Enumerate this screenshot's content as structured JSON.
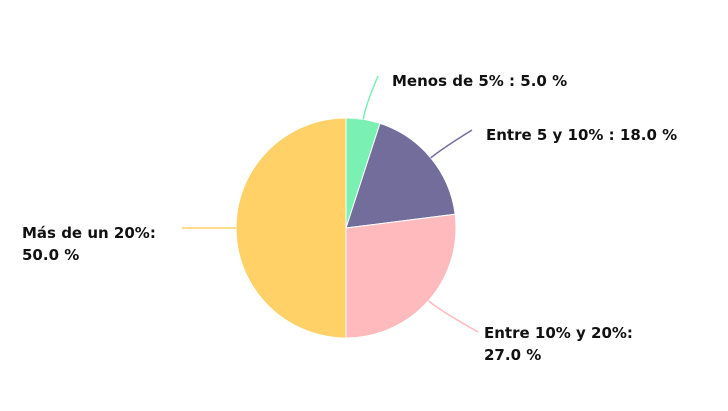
{
  "chart_data": {
    "type": "pie",
    "title": "",
    "slices": [
      {
        "label": "Menos de 5%",
        "value": 5.0,
        "display": [
          "Menos de 5% : 5.0 %"
        ],
        "color": "#7af0b2"
      },
      {
        "label": "Entre 5 y 10%",
        "value": 18.0,
        "display": [
          "Entre 5 y 10% : 18.0 %"
        ],
        "color": "#736d9b"
      },
      {
        "label": "Entre 10% y 20%",
        "value": 27.0,
        "display": [
          "Entre 10% y 20%:",
          "27.0 %"
        ],
        "color": "#ffbabd"
      },
      {
        "label": "Más de un 20%",
        "value": 50.0,
        "display": [
          "Más de un 20%:",
          "50.0 %"
        ],
        "color": "#ffd166"
      }
    ],
    "start": "12 o'clock",
    "direction": "clockwise"
  }
}
